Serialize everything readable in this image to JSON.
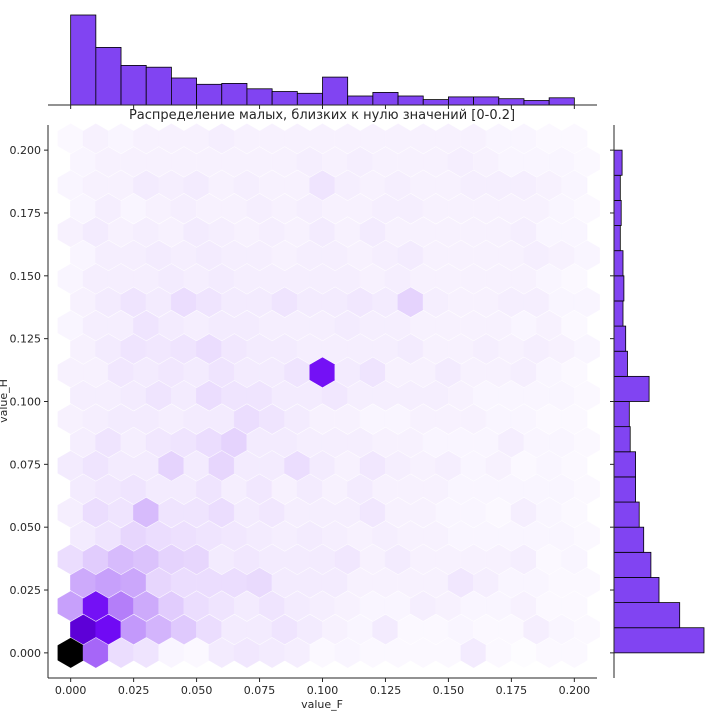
{
  "chart_data": {
    "type": "hexbin-jointplot",
    "title": "Распределение малых, близких к нулю значений [0-0.2]",
    "xlabel": "value_F",
    "ylabel": "value_H",
    "xlim": [
      -0.009,
      0.209
    ],
    "ylim": [
      -0.01,
      0.21
    ],
    "xticks": [
      "0.000",
      "0.025",
      "0.050",
      "0.075",
      "0.100",
      "0.125",
      "0.150",
      "0.175",
      "0.200"
    ],
    "yticks": [
      "0.000",
      "0.025",
      "0.050",
      "0.075",
      "0.100",
      "0.125",
      "0.150",
      "0.175",
      "0.200"
    ],
    "grid": false,
    "colors": {
      "hist_fill": "#8144f2",
      "hist_edge": "#000000",
      "hex_max": "#6a00f4",
      "hex_peak": "#000000"
    },
    "hexbin": {
      "x_centers_even_rows": [
        0.0,
        0.01,
        0.02,
        0.03,
        0.04,
        0.05,
        0.06,
        0.07,
        0.08,
        0.09,
        0.1,
        0.11,
        0.12,
        0.13,
        0.14,
        0.15,
        0.16,
        0.17,
        0.18,
        0.19,
        0.2
      ],
      "row_spacing_y": 0.0093,
      "density_rows": [
        [
          1.0,
          0.45,
          0.1,
          0.08,
          0.03,
          0.02,
          0.06,
          0.07,
          0.06,
          0.05,
          0.02,
          0.03,
          0.02,
          0.02,
          0.02,
          0.02,
          0.06,
          0.02,
          0.01,
          0.02,
          0.02
        ],
        [
          0.78,
          0.72,
          0.3,
          0.22,
          0.16,
          0.1,
          0.06,
          0.06,
          0.08,
          0.06,
          0.04,
          0.03,
          0.06,
          0.02,
          0.02,
          0.03,
          0.02,
          0.02,
          0.05,
          0.03,
          0.02
        ],
        [
          0.28,
          0.7,
          0.38,
          0.25,
          0.15,
          0.1,
          0.08,
          0.06,
          0.08,
          0.06,
          0.05,
          0.04,
          0.03,
          0.03,
          0.05,
          0.04,
          0.03,
          0.03,
          0.04,
          0.02,
          0.02
        ],
        [
          0.25,
          0.28,
          0.26,
          0.12,
          0.1,
          0.1,
          0.1,
          0.11,
          0.06,
          0.06,
          0.06,
          0.04,
          0.04,
          0.04,
          0.04,
          0.07,
          0.05,
          0.03,
          0.03,
          0.02,
          0.02
        ],
        [
          0.1,
          0.15,
          0.2,
          0.18,
          0.13,
          0.12,
          0.06,
          0.07,
          0.06,
          0.06,
          0.06,
          0.07,
          0.04,
          0.06,
          0.04,
          0.04,
          0.04,
          0.04,
          0.05,
          0.02,
          0.03
        ],
        [
          0.06,
          0.08,
          0.12,
          0.1,
          0.09,
          0.08,
          0.07,
          0.06,
          0.05,
          0.06,
          0.05,
          0.04,
          0.05,
          0.04,
          0.04,
          0.03,
          0.03,
          0.03,
          0.03,
          0.03,
          0.02
        ],
        [
          0.05,
          0.1,
          0.08,
          0.2,
          0.08,
          0.08,
          0.1,
          0.06,
          0.07,
          0.05,
          0.05,
          0.05,
          0.07,
          0.04,
          0.04,
          0.03,
          0.03,
          0.02,
          0.05,
          0.03,
          0.02
        ],
        [
          0.06,
          0.07,
          0.08,
          0.06,
          0.06,
          0.08,
          0.05,
          0.07,
          0.04,
          0.06,
          0.04,
          0.06,
          0.04,
          0.04,
          0.04,
          0.03,
          0.03,
          0.03,
          0.03,
          0.03,
          0.02
        ],
        [
          0.06,
          0.08,
          0.06,
          0.06,
          0.13,
          0.06,
          0.12,
          0.06,
          0.06,
          0.1,
          0.06,
          0.04,
          0.07,
          0.05,
          0.04,
          0.05,
          0.03,
          0.04,
          0.02,
          0.03,
          0.02
        ],
        [
          0.05,
          0.08,
          0.05,
          0.07,
          0.08,
          0.1,
          0.13,
          0.06,
          0.06,
          0.05,
          0.05,
          0.05,
          0.04,
          0.04,
          0.03,
          0.03,
          0.03,
          0.05,
          0.03,
          0.03,
          0.02
        ],
        [
          0.04,
          0.05,
          0.06,
          0.06,
          0.05,
          0.06,
          0.06,
          0.1,
          0.08,
          0.06,
          0.04,
          0.04,
          0.03,
          0.03,
          0.04,
          0.04,
          0.04,
          0.03,
          0.03,
          0.02,
          0.02
        ],
        [
          0.05,
          0.05,
          0.06,
          0.08,
          0.06,
          0.1,
          0.08,
          0.08,
          0.06,
          0.06,
          0.07,
          0.05,
          0.05,
          0.05,
          0.05,
          0.04,
          0.03,
          0.03,
          0.03,
          0.03,
          0.02
        ],
        [
          0.04,
          0.04,
          0.07,
          0.06,
          0.07,
          0.06,
          0.08,
          0.06,
          0.06,
          0.08,
          0.7,
          0.06,
          0.08,
          0.04,
          0.04,
          0.06,
          0.04,
          0.04,
          0.05,
          0.03,
          0.02
        ],
        [
          0.04,
          0.06,
          0.08,
          0.07,
          0.08,
          0.1,
          0.07,
          0.06,
          0.06,
          0.05,
          0.05,
          0.05,
          0.05,
          0.06,
          0.04,
          0.04,
          0.05,
          0.04,
          0.05,
          0.04,
          0.03
        ],
        [
          0.03,
          0.05,
          0.05,
          0.08,
          0.06,
          0.05,
          0.06,
          0.06,
          0.05,
          0.05,
          0.05,
          0.06,
          0.05,
          0.05,
          0.04,
          0.04,
          0.04,
          0.04,
          0.03,
          0.04,
          0.02
        ],
        [
          0.04,
          0.06,
          0.08,
          0.06,
          0.1,
          0.08,
          0.06,
          0.06,
          0.08,
          0.06,
          0.06,
          0.07,
          0.06,
          0.13,
          0.05,
          0.04,
          0.04,
          0.05,
          0.05,
          0.03,
          0.03
        ],
        [
          0.03,
          0.05,
          0.05,
          0.05,
          0.06,
          0.05,
          0.06,
          0.05,
          0.05,
          0.05,
          0.05,
          0.05,
          0.04,
          0.05,
          0.04,
          0.04,
          0.04,
          0.04,
          0.04,
          0.03,
          0.02
        ],
        [
          0.03,
          0.05,
          0.05,
          0.06,
          0.05,
          0.06,
          0.05,
          0.05,
          0.04,
          0.05,
          0.05,
          0.04,
          0.05,
          0.06,
          0.04,
          0.04,
          0.04,
          0.04,
          0.05,
          0.04,
          0.03
        ],
        [
          0.04,
          0.06,
          0.04,
          0.05,
          0.04,
          0.06,
          0.05,
          0.04,
          0.05,
          0.04,
          0.06,
          0.04,
          0.06,
          0.04,
          0.04,
          0.04,
          0.04,
          0.04,
          0.05,
          0.03,
          0.03
        ],
        [
          0.03,
          0.05,
          0.03,
          0.04,
          0.05,
          0.04,
          0.04,
          0.05,
          0.04,
          0.05,
          0.04,
          0.04,
          0.05,
          0.05,
          0.04,
          0.04,
          0.04,
          0.04,
          0.04,
          0.03,
          0.02
        ],
        [
          0.03,
          0.04,
          0.04,
          0.06,
          0.05,
          0.06,
          0.04,
          0.05,
          0.04,
          0.04,
          0.08,
          0.05,
          0.04,
          0.05,
          0.04,
          0.04,
          0.05,
          0.05,
          0.05,
          0.04,
          0.03
        ],
        [
          0.03,
          0.04,
          0.04,
          0.04,
          0.04,
          0.04,
          0.04,
          0.04,
          0.04,
          0.05,
          0.04,
          0.05,
          0.04,
          0.04,
          0.04,
          0.05,
          0.04,
          0.03,
          0.03,
          0.03,
          0.02
        ],
        [
          0.02,
          0.04,
          0.03,
          0.04,
          0.04,
          0.04,
          0.05,
          0.04,
          0.04,
          0.04,
          0.04,
          0.04,
          0.04,
          0.04,
          0.04,
          0.04,
          0.04,
          0.03,
          0.03,
          0.02,
          0.02
        ]
      ]
    },
    "marginal_x": {
      "bin_edges": [
        0.0,
        0.01,
        0.02,
        0.03,
        0.04,
        0.05,
        0.06,
        0.07,
        0.08,
        0.09,
        0.1,
        0.11,
        0.12,
        0.13,
        0.14,
        0.15,
        0.16,
        0.17,
        0.18,
        0.19,
        0.2
      ],
      "counts": [
        1.0,
        0.64,
        0.44,
        0.42,
        0.3,
        0.23,
        0.24,
        0.18,
        0.15,
        0.13,
        0.31,
        0.1,
        0.14,
        0.1,
        0.06,
        0.09,
        0.09,
        0.07,
        0.05,
        0.08
      ]
    },
    "marginal_y": {
      "bin_edges": [
        0.0,
        0.01,
        0.02,
        0.03,
        0.04,
        0.05,
        0.06,
        0.07,
        0.08,
        0.09,
        0.1,
        0.11,
        0.12,
        0.13,
        0.14,
        0.15,
        0.16,
        0.17,
        0.18,
        0.19,
        0.2
      ],
      "counts": [
        1.0,
        0.73,
        0.5,
        0.41,
        0.33,
        0.28,
        0.24,
        0.24,
        0.18,
        0.17,
        0.39,
        0.15,
        0.13,
        0.1,
        0.11,
        0.1,
        0.07,
        0.08,
        0.07,
        0.09
      ]
    }
  }
}
